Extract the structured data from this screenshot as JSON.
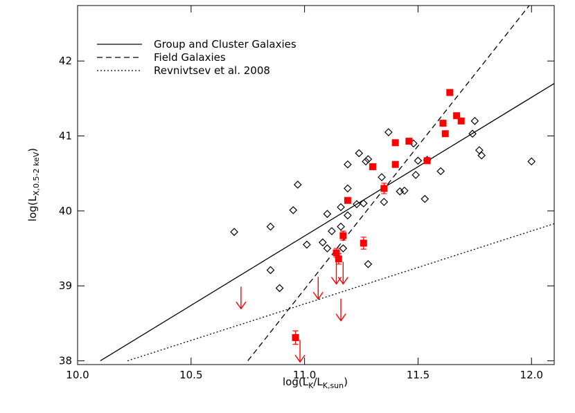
{
  "chart_data": {
    "type": "scatter",
    "xlabel": {
      "text": "log(L",
      "sub": "K",
      "sub2": "K,sun",
      "sep": "/L",
      "end": ")"
    },
    "ylabel": {
      "text": "log(L",
      "sub": "X,0.5-2 keV",
      "end": ")"
    },
    "xlim": [
      10.0,
      12.1
    ],
    "ylim": [
      37.95,
      42.74
    ],
    "xticks": [
      {
        "value": 10.0,
        "label": "10.0"
      },
      {
        "value": 10.5,
        "label": "10.5"
      },
      {
        "value": 11.0,
        "label": "11.0"
      },
      {
        "value": 11.5,
        "label": "11.5"
      },
      {
        "value": 12.0,
        "label": "12.0"
      }
    ],
    "yticks": [
      38,
      39,
      40,
      41,
      42
    ],
    "legend": "upper left",
    "series": [
      {
        "name": "Group and Cluster Galaxies",
        "style": "solid",
        "color": "#000000",
        "x": [
          10.1,
          12.1
        ],
        "values": [
          38,
          41.7
        ]
      },
      {
        "name": "Field Galaxies",
        "style": "dashed",
        "color": "#000000",
        "x": [
          10.75,
          11.99
        ],
        "values": [
          38,
          42.74
        ]
      },
      {
        "name": "Revnivtsev et al. 2008",
        "style": "dotted",
        "color": "#000000",
        "x": [
          10.22,
          12.1
        ],
        "values": [
          38,
          39.83
        ]
      }
    ],
    "diamonds": {
      "color": "#000000",
      "x": [
        10.69,
        10.85,
        10.85,
        10.89,
        10.95,
        10.97,
        11.01,
        11.08,
        11.1,
        11.1,
        11.12,
        11.16,
        11.16,
        11.17,
        11.19,
        11.19,
        11.19,
        11.23,
        11.24,
        11.26,
        11.27,
        11.28,
        11.28,
        11.34,
        11.35,
        11.37,
        11.42,
        11.44,
        11.48,
        11.49,
        11.5,
        11.54,
        11.53,
        11.6,
        11.74,
        11.75,
        11.77,
        11.78,
        12.0
      ],
      "values": [
        39.72,
        39.79,
        39.21,
        38.97,
        40.01,
        40.35,
        39.55,
        39.58,
        39.96,
        39.5,
        39.73,
        40.05,
        39.79,
        39.5,
        40.62,
        40.3,
        39.94,
        40.09,
        40.77,
        40.1,
        40.66,
        40.69,
        39.29,
        40.45,
        40.12,
        41.05,
        40.26,
        40.27,
        40.9,
        40.48,
        40.67,
        40.68,
        40.16,
        40.53,
        41.03,
        41.2,
        40.81,
        40.74,
        40.66
      ]
    },
    "detections": {
      "color": "#ff0000",
      "x": [
        10.96,
        11.14,
        11.15,
        11.17,
        11.19,
        11.26,
        11.3,
        11.35,
        11.4,
        11.4,
        11.46,
        11.54,
        11.61,
        11.62,
        11.64,
        11.67,
        11.69
      ],
      "values": [
        38.31,
        39.44,
        39.36,
        39.67,
        40.14,
        39.57,
        40.59,
        40.3,
        40.91,
        40.62,
        40.93,
        40.67,
        41.17,
        41.03,
        41.58,
        41.27,
        41.2
      ],
      "errors": [
        0.09,
        0.06,
        0.07,
        0.06,
        0.03,
        0.08,
        0.03,
        0.07,
        0.03,
        0.03,
        0.03,
        0.03,
        0.03,
        0.03,
        0.03,
        0.03,
        0.03
      ]
    },
    "upper_limits": {
      "color": "#ff0000",
      "x": [
        10.72,
        11.06,
        11.14,
        11.17,
        11.16,
        10.98
      ],
      "values": [
        38.99,
        39.12,
        39.32,
        39.32,
        38.83,
        38.28
      ]
    }
  }
}
